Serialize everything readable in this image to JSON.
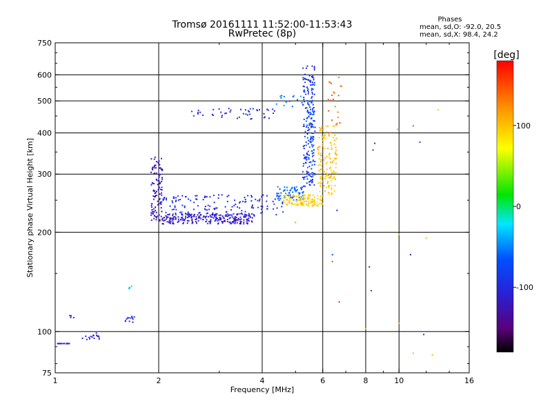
{
  "chart_data": {
    "type": "scatter",
    "title": "Tromsø 20161111 11:52:00-11:53:43",
    "subtitle": "RwPretec (8p)",
    "xlabel": "Frequency [MHz]",
    "ylabel": "Stationary phase Virtual Height [km]",
    "x_scale": "log",
    "y_scale": "log",
    "xlim": [
      1,
      16
    ],
    "ylim": [
      75,
      750
    ],
    "grid": true,
    "x_ticks": [
      1,
      2,
      4,
      6,
      8,
      10,
      16
    ],
    "x_tick_labels": [
      "1",
      "2",
      "4",
      "6",
      "8",
      "10",
      "16"
    ],
    "x_grid": [
      2,
      4,
      6,
      8,
      10
    ],
    "y_ticks": [
      75,
      100,
      200,
      300,
      400,
      500,
      600,
      750
    ],
    "y_tick_labels": [
      "75",
      "100",
      "200",
      "300",
      "400",
      "500",
      "600",
      "750"
    ],
    "y_grid": [
      100,
      200,
      300,
      400,
      500,
      600
    ],
    "stats": {
      "header": "Phases",
      "o_line": "mean, sd,O: -92.0, 20.5",
      "x_line": "mean, sd,X: 98.4, 24.2"
    },
    "colorbar": {
      "label": "[deg]",
      "range": [
        -180,
        180
      ],
      "ticks": [
        100,
        0,
        -100
      ],
      "tick_labels": [
        "100",
        "0",
        "-100"
      ]
    },
    "series": [
      {
        "mode": "O",
        "segments": [
          {
            "x": [
              1.0,
              1.1
            ],
            "y": [
              92,
              92
            ],
            "phase": -115,
            "count": 18
          },
          {
            "x": [
              1.2,
              1.35
            ],
            "y": [
              94,
              99
            ],
            "phase": -110,
            "count": 16
          },
          {
            "x": [
              1.1,
              1.14
            ],
            "y": [
              109,
              112
            ],
            "phase": -105,
            "count": 4
          },
          {
            "x": [
              1.6,
              1.72
            ],
            "y": [
              106,
              112
            ],
            "phase": -105,
            "count": 12
          },
          {
            "x": [
              1.62,
              1.68
            ],
            "y": [
              135,
              142
            ],
            "phase": -30,
            "count": 4
          },
          {
            "x": [
              1.9,
              2.05
            ],
            "y": [
              215,
              340
            ],
            "phase": -120,
            "count": 110
          },
          {
            "x": [
              2.05,
              3.8
            ],
            "y": [
              212,
              228
            ],
            "phase": -115,
            "count": 240
          },
          {
            "x": [
              2.0,
              4.6
            ],
            "y": [
              225,
              260
            ],
            "phase": -95,
            "count": 150
          },
          {
            "x": [
              4.4,
              5.3
            ],
            "y": [
              250,
              275
            ],
            "phase": -60,
            "count": 70
          },
          {
            "x": [
              5.25,
              5.7
            ],
            "y": [
              275,
              600
            ],
            "phase": -90,
            "count": 180
          },
          {
            "x": [
              5.35,
              5.65
            ],
            "y": [
              300,
              500
            ],
            "phase": -60,
            "count": 40
          },
          {
            "x": [
              2.45,
              4.4
            ],
            "y": [
              440,
              475
            ],
            "phase": -100,
            "count": 45
          },
          {
            "x": [
              4.4,
              5.3
            ],
            "y": [
              480,
              520
            ],
            "phase": -55,
            "count": 15
          },
          {
            "x": [
              5.2,
              5.7
            ],
            "y": [
              560,
              640
            ],
            "phase": -105,
            "count": 12
          }
        ]
      },
      {
        "mode": "X",
        "segments": [
          {
            "x": [
              4.6,
              6.0
            ],
            "y": [
              240,
              260
            ],
            "phase": 95,
            "count": 120
          },
          {
            "x": [
              5.8,
              6.6
            ],
            "y": [
              260,
              420
            ],
            "phase": 100,
            "count": 140
          },
          {
            "x": [
              6.2,
              6.8
            ],
            "y": [
              420,
              590
            ],
            "phase": 140,
            "count": 22
          }
        ]
      }
    ],
    "sparse_points": [
      {
        "x": 8.5,
        "y": 372,
        "phase": -110
      },
      {
        "x": 8.4,
        "y": 355,
        "phase": -100
      },
      {
        "x": 6.6,
        "y": 233,
        "phase": -110
      },
      {
        "x": 9.9,
        "y": 410,
        "phase": 110
      },
      {
        "x": 11.0,
        "y": 420,
        "phase": 150
      },
      {
        "x": 11.5,
        "y": 375,
        "phase": -80
      },
      {
        "x": 13.0,
        "y": 470,
        "phase": 50
      },
      {
        "x": 8.2,
        "y": 157,
        "phase": -110
      },
      {
        "x": 8.3,
        "y": 133,
        "phase": -75
      },
      {
        "x": 10.0,
        "y": 197,
        "phase": 100
      },
      {
        "x": 10.8,
        "y": 171,
        "phase": -110
      },
      {
        "x": 12.0,
        "y": 192,
        "phase": 100
      },
      {
        "x": 6.4,
        "y": 171,
        "phase": -70
      },
      {
        "x": 6.4,
        "y": 163,
        "phase": 150
      },
      {
        "x": 6.7,
        "y": 123,
        "phase": 175
      },
      {
        "x": 5.0,
        "y": 214,
        "phase": 120
      },
      {
        "x": 8.0,
        "y": 102,
        "phase": 105
      },
      {
        "x": 10.0,
        "y": 106,
        "phase": 110
      },
      {
        "x": 11.8,
        "y": 98,
        "phase": -100
      },
      {
        "x": 11.0,
        "y": 86,
        "phase": 105
      },
      {
        "x": 12.5,
        "y": 85,
        "phase": 100
      }
    ]
  }
}
